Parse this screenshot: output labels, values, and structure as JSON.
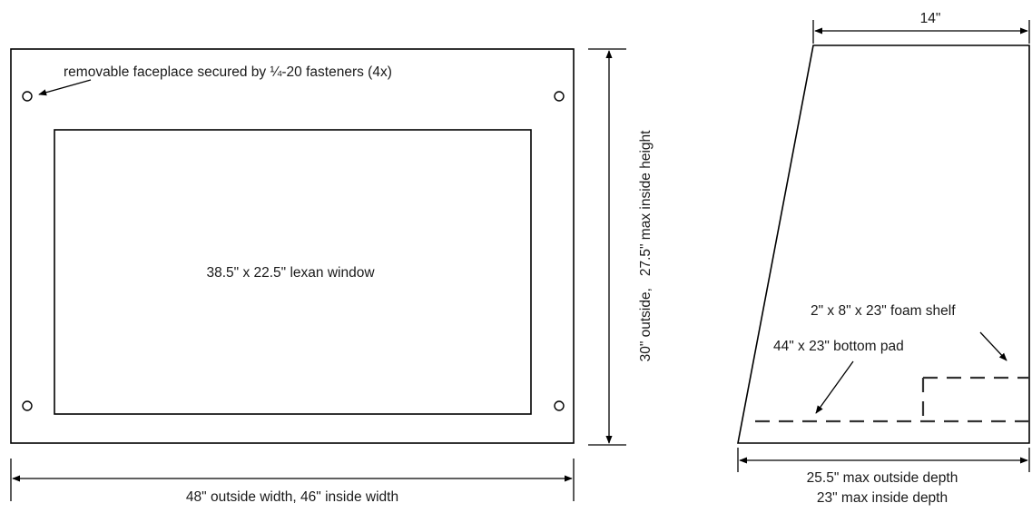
{
  "front_view": {
    "faceplate_note": "removable faceplace secured by ¼-20 fasteners (4x)",
    "window_label": "38.5\" x 22.5\" lexan window",
    "width_label": "48\" outside width, 46\" inside width",
    "height_label": "30\" outside,   27.5\" max inside height"
  },
  "side_view": {
    "top_width_label": "14\"",
    "foam_shelf_label": "2\" x 8\" x 23\" foam shelf",
    "bottom_pad_label": "44\" x 23\" bottom pad",
    "depth_label_line1": "25.5\" max outside depth",
    "depth_label_line2": "23\" max inside depth"
  },
  "colors": {
    "line": "#000000",
    "text": "#1a1a1a",
    "dashed": "#333333",
    "background": "#ffffff"
  }
}
